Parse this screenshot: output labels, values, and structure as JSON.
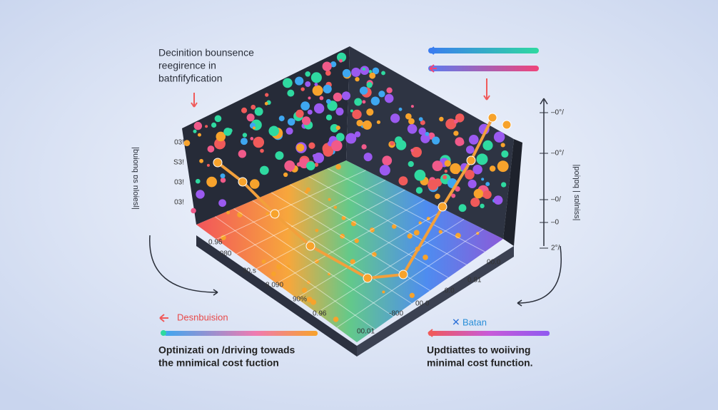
{
  "title_lines": [
    "Decinition bounsence",
    "reegirence in",
    "batnfifyfication"
  ],
  "left_axis_label": "|buionq ɒs nloiesl|",
  "left_ticks": [
    "03!",
    "S3!",
    "03!",
    "03!"
  ],
  "right_ticks": [
    "–0°/",
    "–0°/",
    "–0/",
    "–0",
    "2°/"
  ],
  "right_axis_label": "|poiɿɒq | sɒlniss|",
  "floor_labels": [
    "0.96",
    ".080",
    "30.s",
    "8.090",
    "90%",
    "0.96",
    "00.01",
    "-800",
    "00 0",
    ".0.0",
    "0.81",
    "00.0"
  ],
  "legend_left": "Desnbuision",
  "legend_right": "Batan",
  "caption_left": [
    "Optinizati on  /driving towads",
    "the mnimical cost fuction"
  ],
  "caption_right": [
    "Updtiattes to woiiving",
    "minimal cost function."
  ]
}
